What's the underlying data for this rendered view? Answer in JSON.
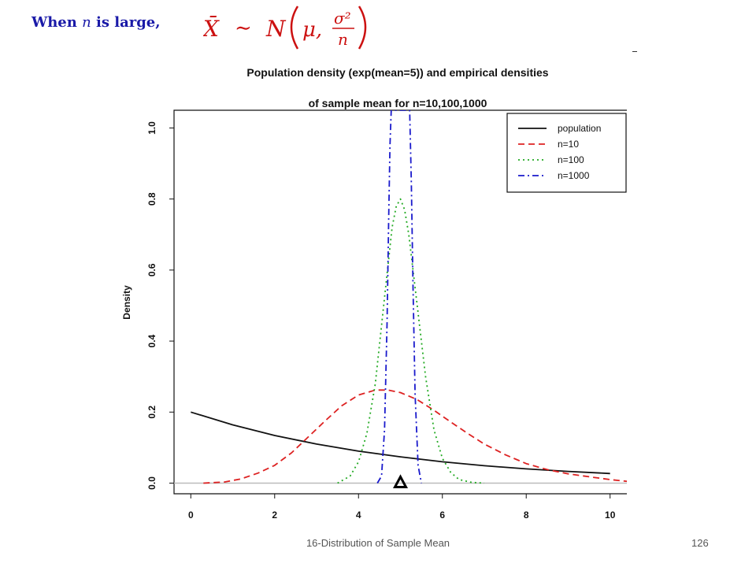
{
  "slide": {
    "heading_prefix": "When",
    "heading_var": "n",
    "heading_suffix": "is large,",
    "formula": {
      "lhs": "X̄",
      "relation": "∼",
      "dist": "N",
      "mean": "μ,",
      "numerator": "σ²",
      "denominator": "n"
    },
    "footer_title": "16-Distribution of Sample Mean",
    "page_number": "126"
  },
  "chart_data": {
    "type": "line",
    "title_lines": [
      "Population density (exp(mean=5)) and empirical densities",
      "of sample mean for n=10,100,1000"
    ],
    "xlabel": "",
    "ylabel": "Density",
    "xlim": [
      -0.4,
      10.4
    ],
    "ylim": [
      -0.03,
      1.05
    ],
    "x_ticks": [
      "0",
      "2",
      "4",
      "6",
      "8",
      "10"
    ],
    "y_ticks": [
      "0.0",
      "0.2",
      "0.4",
      "0.6",
      "0.8",
      "1.0"
    ],
    "legend_position": "top-right",
    "marker": {
      "shape": "triangle",
      "x": 5,
      "y": 0,
      "color": "#000000"
    },
    "series": [
      {
        "name": "population",
        "color": "#111111",
        "style": "solid",
        "x": [
          0,
          1,
          2,
          3,
          4,
          5,
          6,
          7,
          8,
          9,
          10
        ],
        "y": [
          0.2,
          0.164,
          0.134,
          0.11,
          0.09,
          0.074,
          0.06,
          0.049,
          0.04,
          0.033,
          0.027
        ]
      },
      {
        "name": "n=10",
        "color": "#dd2222",
        "style": "dashed",
        "x": [
          0.3,
          0.8,
          1.2,
          1.6,
          2.0,
          2.4,
          2.8,
          3.2,
          3.6,
          4.0,
          4.4,
          4.7,
          5.0,
          5.4,
          5.8,
          6.2,
          6.6,
          7.0,
          7.5,
          8.0,
          8.5,
          9.0,
          9.5,
          10.0,
          10.4
        ],
        "y": [
          0.0,
          0.003,
          0.012,
          0.028,
          0.05,
          0.085,
          0.13,
          0.175,
          0.218,
          0.248,
          0.262,
          0.262,
          0.255,
          0.235,
          0.205,
          0.172,
          0.14,
          0.11,
          0.08,
          0.055,
          0.038,
          0.026,
          0.018,
          0.01,
          0.005
        ]
      },
      {
        "name": "n=100",
        "color": "#22aa22",
        "style": "dotted",
        "x": [
          3.5,
          3.8,
          4.0,
          4.2,
          4.4,
          4.6,
          4.8,
          4.9,
          5.0,
          5.1,
          5.2,
          5.4,
          5.6,
          5.8,
          6.0,
          6.2,
          6.4,
          6.7,
          7.0
        ],
        "y": [
          0.0,
          0.02,
          0.06,
          0.14,
          0.28,
          0.5,
          0.72,
          0.78,
          0.8,
          0.77,
          0.7,
          0.5,
          0.3,
          0.15,
          0.07,
          0.03,
          0.01,
          0.002,
          0.0
        ]
      },
      {
        "name": "n=1000",
        "color": "#1a1acc",
        "style": "dashdot",
        "x": [
          4.45,
          4.55,
          4.62,
          4.68,
          4.72,
          4.75,
          4.78,
          5.22,
          5.26,
          5.3,
          5.35,
          5.42,
          5.5
        ],
        "y": [
          0.0,
          0.02,
          0.15,
          0.45,
          0.75,
          0.95,
          1.05,
          1.05,
          0.85,
          0.55,
          0.25,
          0.05,
          0.0
        ]
      }
    ]
  }
}
